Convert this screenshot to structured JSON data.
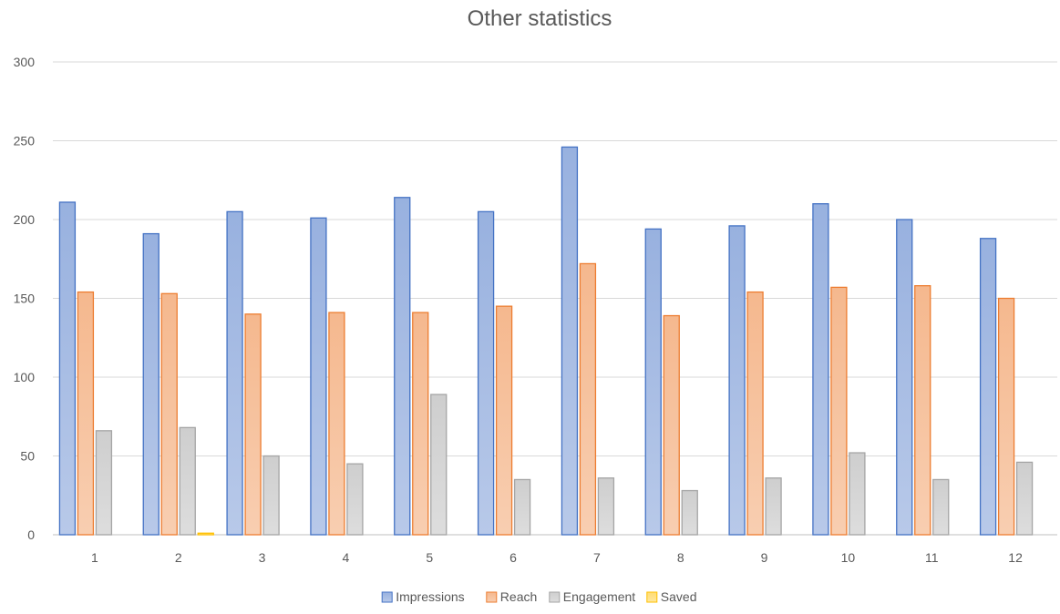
{
  "chart_data": {
    "type": "bar",
    "title": "Other statistics",
    "xlabel": "",
    "ylabel": "",
    "ylim": [
      0,
      300
    ],
    "yticks": [
      0,
      50,
      100,
      150,
      200,
      250,
      300
    ],
    "categories": [
      "1",
      "2",
      "3",
      "4",
      "5",
      "6",
      "7",
      "8",
      "9",
      "10",
      "11",
      "12"
    ],
    "series": [
      {
        "name": "Impressions",
        "color": "#4472c4",
        "values": [
          211,
          191,
          205,
          201,
          214,
          205,
          246,
          194,
          196,
          210,
          200,
          188
        ]
      },
      {
        "name": "Reach",
        "color": "#ed7d31",
        "values": [
          154,
          153,
          140,
          141,
          141,
          145,
          172,
          139,
          154,
          157,
          158,
          150
        ]
      },
      {
        "name": "Engagement",
        "color": "#a5a5a5",
        "values": [
          66,
          68,
          50,
          45,
          89,
          35,
          36,
          28,
          36,
          52,
          35,
          46
        ]
      },
      {
        "name": "Saved",
        "color": "#ffc000",
        "values": [
          0,
          1,
          0,
          0,
          0,
          0,
          0,
          0,
          0,
          0,
          0,
          0
        ]
      }
    ],
    "grid": true,
    "legend": "bottom"
  }
}
